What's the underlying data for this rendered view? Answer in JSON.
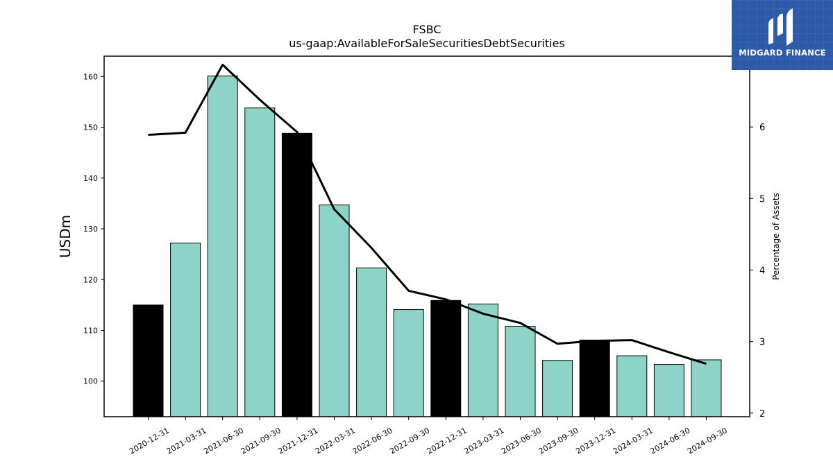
{
  "header": {
    "title_line1": "FSBC",
    "title_line2": "us-gaap:AvailableForSaleSecuritiesDebtSecurities"
  },
  "logo": {
    "text": "MIDGARD FINANCE",
    "background_color": "#2c5aa8",
    "icon": "midgard-logo-icon"
  },
  "chart_data": {
    "type": "bar",
    "title": "FSBC",
    "subtitle": "us-gaap:AvailableForSaleSecuritiesDebtSecurities",
    "ylabel": "USDm",
    "y2label": "Percentage of Assets",
    "ylim": [
      93,
      164
    ],
    "y2lim": [
      1.95,
      6.99
    ],
    "yticks": [
      100,
      110,
      120,
      130,
      140,
      150,
      160
    ],
    "y2ticks": [
      2,
      3,
      4,
      5,
      6
    ],
    "categories": [
      "2020-12-31",
      "2021-03-31",
      "2021-06-30",
      "2021-09-30",
      "2021-12-31",
      "2022-03-31",
      "2022-06-30",
      "2022-09-30",
      "2022-12-31",
      "2023-03-31",
      "2023-06-30",
      "2023-09-30",
      "2023-12-31",
      "2024-03-31",
      "2024-06-30",
      "2024-09-30"
    ],
    "series": [
      {
        "type": "bar",
        "axis": "left",
        "values": [
          115.0,
          127.2,
          160.1,
          153.8,
          148.8,
          134.7,
          122.3,
          114.1,
          115.9,
          115.2,
          110.8,
          104.1,
          108.1,
          105.0,
          103.3,
          104.2
        ],
        "colors": [
          "#000000",
          "#8dd3c7",
          "#8dd3c7",
          "#8dd3c7",
          "#000000",
          "#8dd3c7",
          "#8dd3c7",
          "#8dd3c7",
          "#000000",
          "#8dd3c7",
          "#8dd3c7",
          "#8dd3c7",
          "#000000",
          "#8dd3c7",
          "#8dd3c7",
          "#8dd3c7"
        ]
      },
      {
        "type": "line",
        "axis": "right",
        "color": "#000000",
        "values": [
          5.89,
          5.92,
          6.87,
          6.38,
          5.93,
          4.85,
          4.31,
          3.71,
          3.59,
          3.39,
          3.26,
          2.97,
          3.01,
          3.02,
          2.85,
          2.69
        ]
      }
    ],
    "grid": false,
    "legend": "none"
  }
}
